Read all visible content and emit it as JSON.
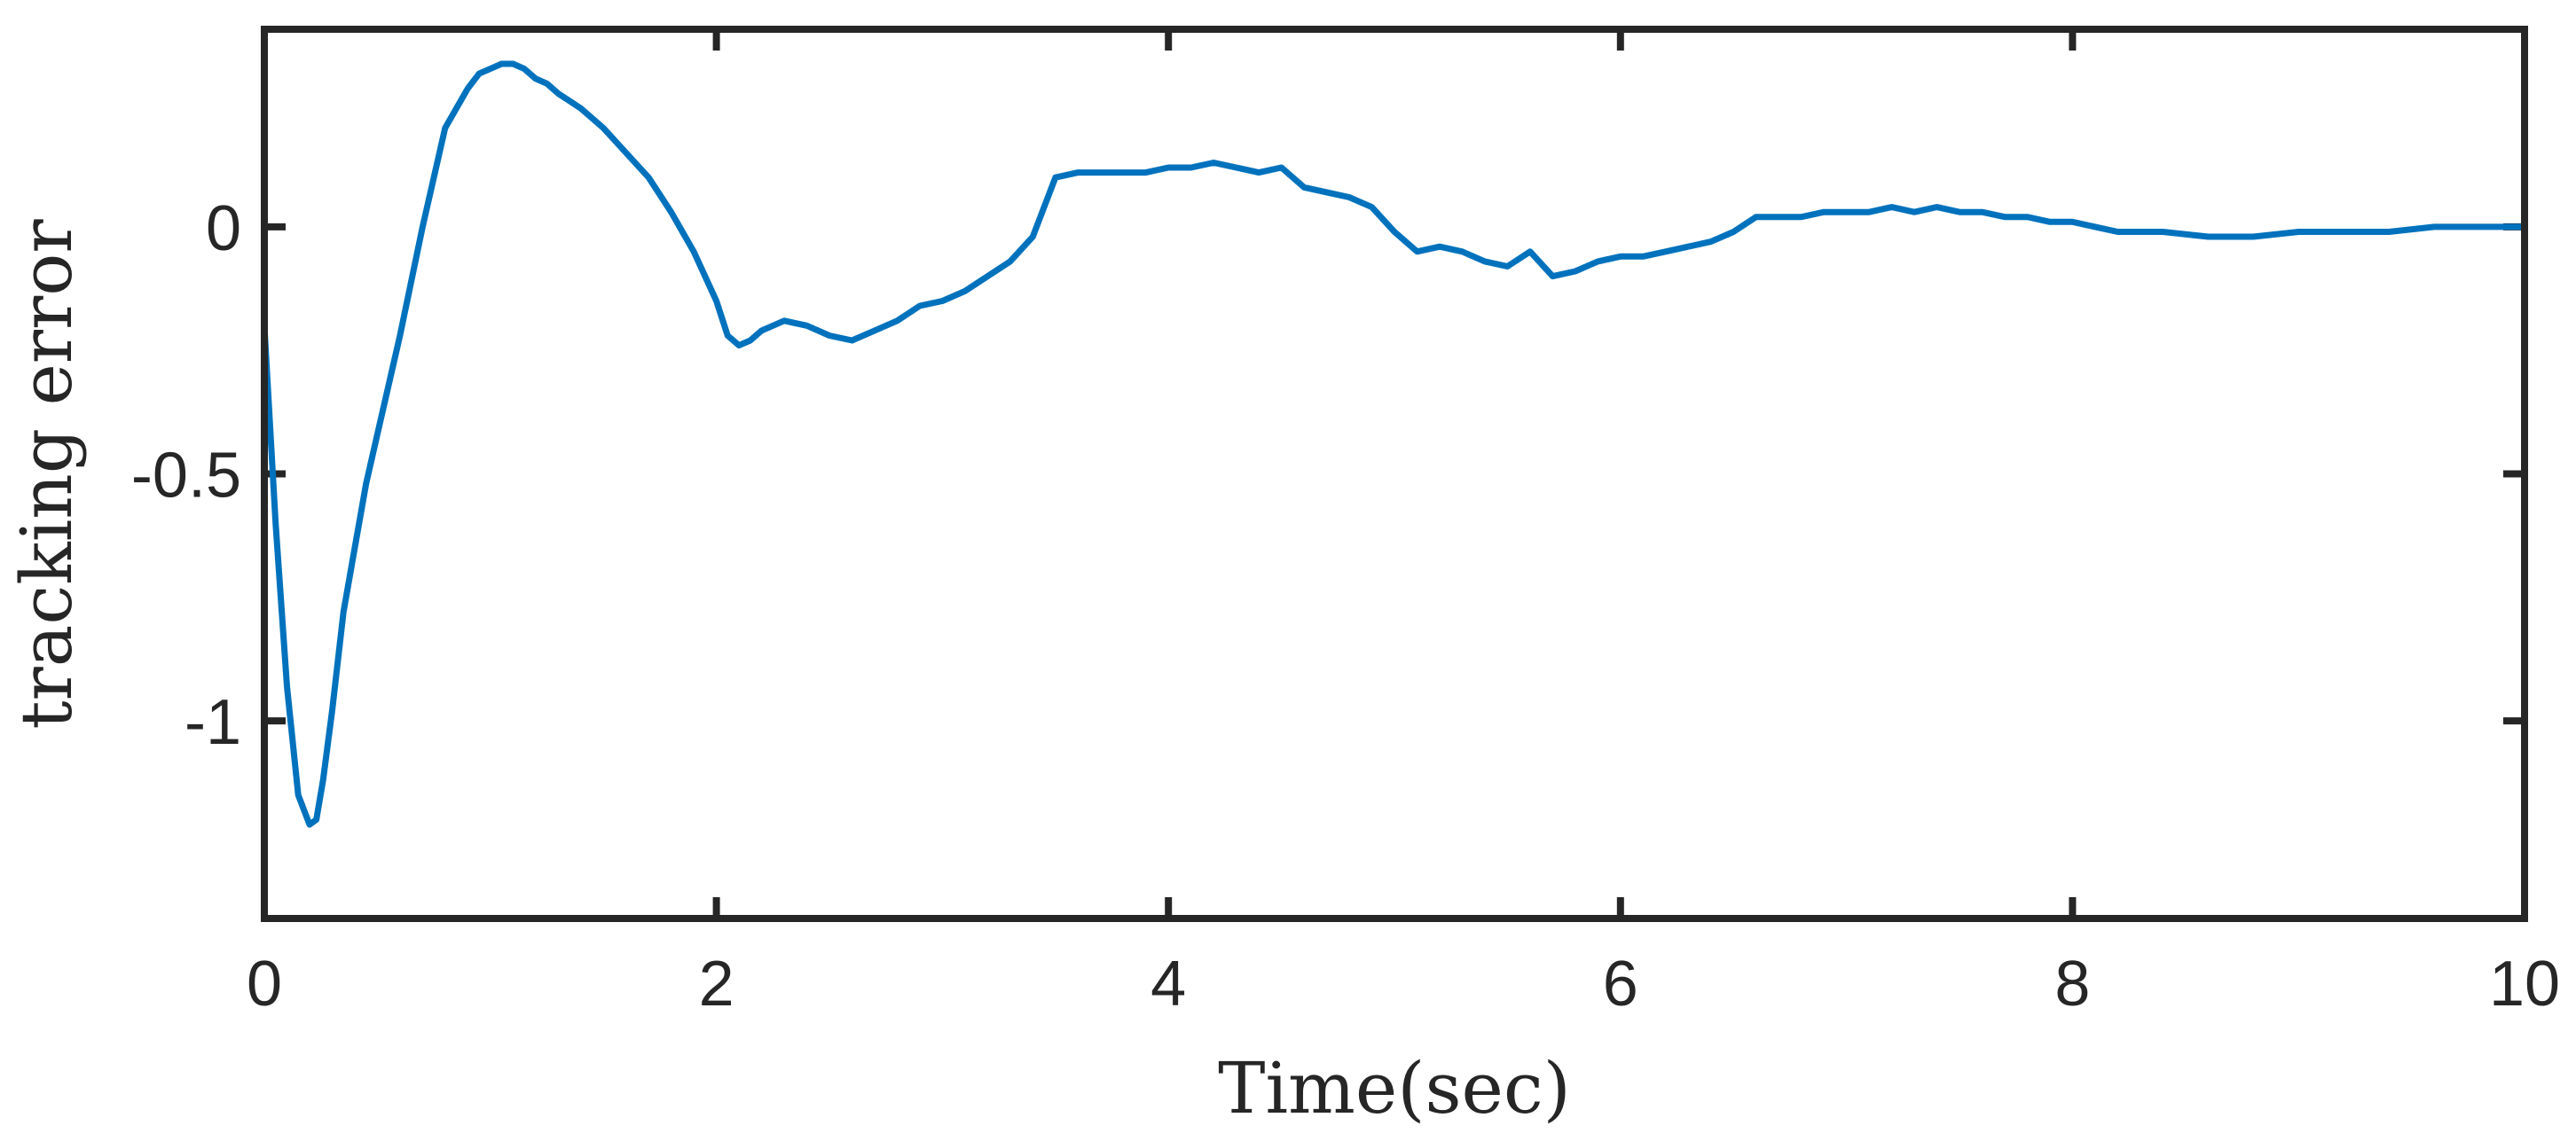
{
  "chart_data": {
    "type": "line",
    "title": "",
    "xlabel": "Time(sec)",
    "ylabel": "tracking error",
    "xlim": [
      0,
      10
    ],
    "ylim": [
      -1.4,
      0.4
    ],
    "xticks": [
      0,
      2,
      4,
      6,
      8,
      10
    ],
    "xtick_labels": [
      "0",
      "2",
      "4",
      "6",
      "8",
      "10"
    ],
    "yticks": [
      0,
      -0.5,
      -1
    ],
    "ytick_labels": [
      "0",
      "-0.5",
      "-1"
    ],
    "grid": false,
    "legend": "none",
    "series": [
      {
        "color": "#0072BD",
        "x": [
          0,
          0.05,
          0.1,
          0.15,
          0.2,
          0.23,
          0.26,
          0.3,
          0.35,
          0.4,
          0.45,
          0.5,
          0.6,
          0.7,
          0.8,
          0.9,
          0.95,
          1.0,
          1.05,
          1.1,
          1.15,
          1.2,
          1.25,
          1.3,
          1.4,
          1.5,
          1.6,
          1.7,
          1.8,
          1.9,
          2.0,
          2.05,
          2.1,
          2.15,
          2.2,
          2.3,
          2.4,
          2.5,
          2.6,
          2.7,
          2.8,
          2.9,
          3.0,
          3.1,
          3.2,
          3.3,
          3.4,
          3.5,
          3.6,
          3.7,
          3.8,
          3.9,
          4.0,
          4.1,
          4.2,
          4.3,
          4.4,
          4.5,
          4.6,
          4.7,
          4.8,
          4.9,
          5.0,
          5.1,
          5.2,
          5.3,
          5.4,
          5.5,
          5.6,
          5.7,
          5.8,
          5.9,
          6.0,
          6.1,
          6.2,
          6.3,
          6.4,
          6.5,
          6.6,
          6.7,
          6.8,
          6.9,
          7.0,
          7.1,
          7.2,
          7.3,
          7.4,
          7.5,
          7.6,
          7.7,
          7.8,
          7.9,
          8.0,
          8.1,
          8.2,
          8.4,
          8.6,
          8.8,
          9.0,
          9.2,
          9.4,
          9.6,
          9.8,
          10.0
        ],
        "y": [
          -0.2,
          -0.6,
          -0.93,
          -1.15,
          -1.21,
          -1.2,
          -1.12,
          -0.98,
          -0.78,
          -0.65,
          -0.52,
          -0.42,
          -0.22,
          0.0,
          0.2,
          0.28,
          0.31,
          0.32,
          0.33,
          0.33,
          0.32,
          0.3,
          0.29,
          0.27,
          0.24,
          0.2,
          0.15,
          0.1,
          0.03,
          -0.05,
          -0.15,
          -0.22,
          -0.24,
          -0.23,
          -0.21,
          -0.19,
          -0.2,
          -0.22,
          -0.23,
          -0.21,
          -0.19,
          -0.16,
          -0.15,
          -0.13,
          -0.1,
          -0.07,
          -0.02,
          0.1,
          0.11,
          0.11,
          0.11,
          0.11,
          0.12,
          0.12,
          0.13,
          0.12,
          0.11,
          0.12,
          0.08,
          0.07,
          0.06,
          0.04,
          -0.01,
          -0.05,
          -0.04,
          -0.05,
          -0.07,
          -0.08,
          -0.05,
          -0.1,
          -0.09,
          -0.07,
          -0.06,
          -0.06,
          -0.05,
          -0.04,
          -0.03,
          -0.01,
          0.02,
          0.02,
          0.02,
          0.03,
          0.03,
          0.03,
          0.04,
          0.03,
          0.04,
          0.03,
          0.03,
          0.02,
          0.02,
          0.01,
          0.01,
          0.0,
          -0.01,
          -0.01,
          -0.02,
          -0.02,
          -0.01,
          -0.01,
          -0.01,
          0.0,
          0.0,
          0.0
        ]
      }
    ]
  }
}
